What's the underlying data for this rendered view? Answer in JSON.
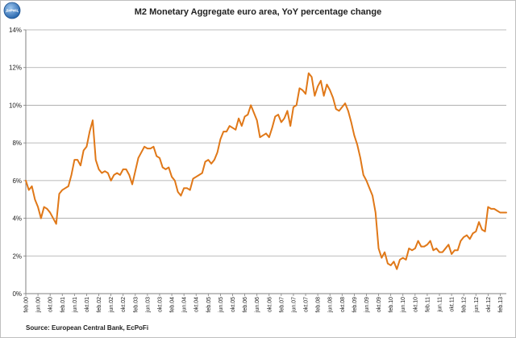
{
  "logo_text": "EcPoFi",
  "source": "Source: European  Central Bank, EcPoFi",
  "colors": {
    "line": "#e07818",
    "grid": "#a6a6a6",
    "axis": "#808080"
  },
  "chart_data": {
    "type": "line",
    "title": "M2 Monetary Aggregate euro area, YoY percentage change",
    "xlabel": "",
    "ylabel": "",
    "ylim": [
      0,
      14
    ],
    "yticks": [
      0,
      2,
      4,
      6,
      8,
      10,
      12,
      14
    ],
    "ytick_labels": [
      "0%",
      "2%",
      "4%",
      "6%",
      "8%",
      "10%",
      "12%",
      "14%"
    ],
    "grid": true,
    "x_start": "feb.00",
    "x_step_months": 1,
    "xtick_labels": [
      "feb.00",
      "jun.00",
      "okt.00",
      "feb.01",
      "jun.01",
      "okt.01",
      "feb.02",
      "jun.02",
      "okt.02",
      "feb.03",
      "jun.03",
      "okt.03",
      "feb.04",
      "jun.04",
      "okt.04",
      "feb.05",
      "jun.05",
      "okt.05",
      "feb.06",
      "jun.06",
      "okt.06",
      "feb.07",
      "jun.07",
      "okt.07",
      "feb.08",
      "jun.08",
      "okt.08",
      "feb.09",
      "jun.09",
      "okt.09",
      "feb.10",
      "jun.10",
      "okt.10",
      "feb.11",
      "jun.11",
      "okt.11",
      "feb.12",
      "jun.12",
      "okt.12",
      "feb.13"
    ],
    "series": [
      {
        "name": "M2 YoY",
        "values": [
          6.0,
          5.5,
          5.7,
          5.0,
          4.6,
          4.0,
          4.6,
          4.5,
          4.3,
          4.0,
          3.7,
          5.3,
          5.5,
          5.6,
          5.7,
          6.3,
          7.1,
          7.1,
          6.8,
          7.6,
          7.8,
          8.6,
          9.2,
          7.1,
          6.6,
          6.4,
          6.5,
          6.4,
          6.0,
          6.3,
          6.4,
          6.3,
          6.6,
          6.6,
          6.3,
          5.8,
          6.5,
          7.2,
          7.5,
          7.8,
          7.7,
          7.7,
          7.8,
          7.3,
          7.2,
          6.7,
          6.6,
          6.7,
          6.2,
          6.0,
          5.4,
          5.2,
          5.6,
          5.6,
          5.5,
          6.1,
          6.2,
          6.3,
          6.4,
          7.0,
          7.1,
          6.9,
          7.1,
          7.5,
          8.2,
          8.6,
          8.6,
          8.9,
          8.8,
          8.7,
          9.3,
          8.9,
          9.4,
          9.5,
          10.0,
          9.6,
          9.2,
          8.3,
          8.4,
          8.5,
          8.3,
          8.8,
          9.4,
          9.5,
          9.1,
          9.3,
          9.7,
          8.9,
          9.9,
          10.0,
          10.9,
          10.8,
          10.6,
          11.7,
          11.5,
          10.5,
          11.0,
          11.3,
          10.5,
          11.1,
          10.8,
          10.4,
          9.8,
          9.7,
          9.9,
          10.1,
          9.7,
          9.1,
          8.4,
          7.9,
          7.2,
          6.3,
          6.0,
          5.6,
          5.2,
          4.3,
          2.4,
          1.9,
          2.2,
          1.6,
          1.5,
          1.7,
          1.3,
          1.8,
          1.9,
          1.8,
          2.4,
          2.3,
          2.4,
          2.8,
          2.5,
          2.5,
          2.6,
          2.8,
          2.3,
          2.4,
          2.2,
          2.2,
          2.4,
          2.6,
          2.1,
          2.3,
          2.3,
          2.8,
          3.0,
          3.1,
          2.9,
          3.2,
          3.3,
          3.8,
          3.4,
          3.3,
          4.6,
          4.5,
          4.5,
          4.4,
          4.3,
          4.3,
          4.3
        ]
      }
    ]
  }
}
